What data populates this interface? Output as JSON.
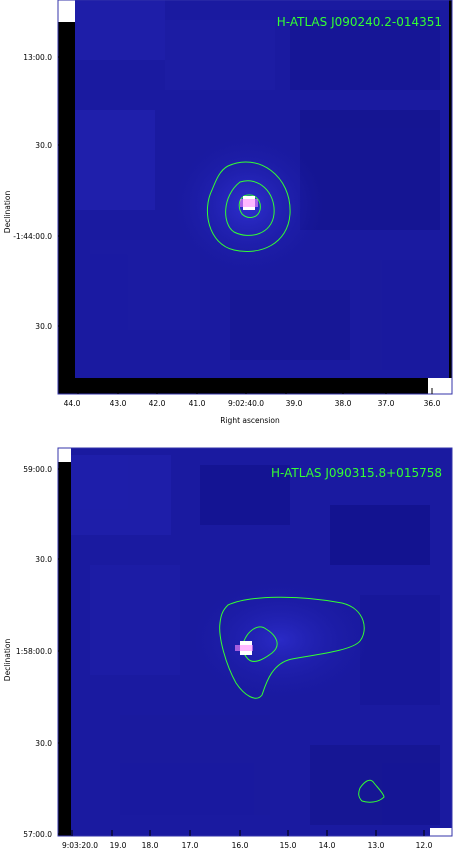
{
  "panels": [
    {
      "title": "H-ATLAS J090240.2-014351",
      "xlabel": "Right ascension",
      "ylabel": "Declination",
      "xticks": [
        "44.0",
        "43.0",
        "42.0",
        "41.0",
        "9:02:40.0",
        "39.0",
        "38.0",
        "37.0",
        "36.0"
      ],
      "yticks": [
        "13:00.0",
        "30.0",
        "-1:44:00.0",
        "30.0"
      ]
    },
    {
      "title": "H-ATLAS J090315.8+015758",
      "xlabel": "",
      "ylabel": "Declination",
      "xticks": [
        "9:03:20.0",
        "19.0",
        "18.0",
        "17.0",
        "16.0",
        "15.0",
        "14.0",
        "13.0",
        "12.0"
      ],
      "yticks": [
        "59:00.0",
        "30.0",
        "1:58:00.0",
        "30.0",
        "57:00.0"
      ]
    }
  ],
  "colors": {
    "background": "#ffffff",
    "map_base": "#1c1ca8",
    "contour": "#33ff33",
    "source": "#ff66ff",
    "frame": "#3333aa"
  }
}
